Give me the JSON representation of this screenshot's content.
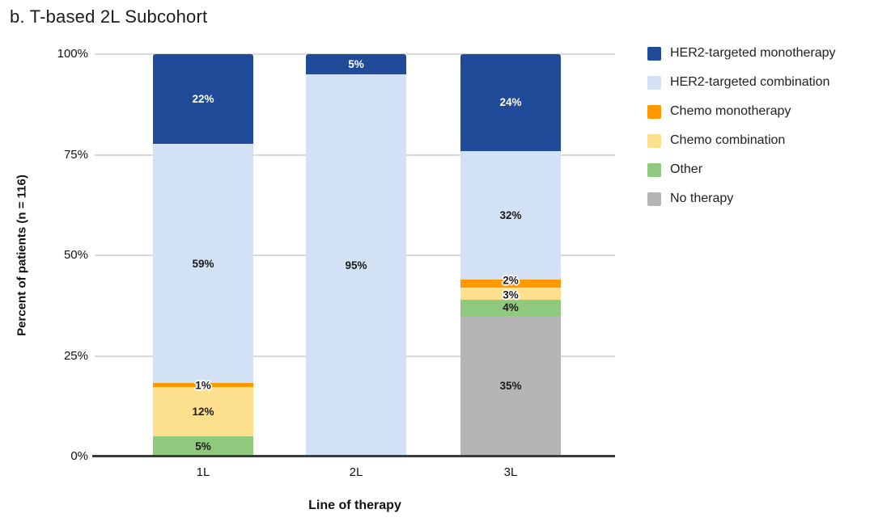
{
  "title": "b. T-based 2L Subcohort",
  "chart_data": {
    "type": "bar",
    "stacked": true,
    "title": "b. T-based 2L Subcohort",
    "xlabel": "Line of therapy",
    "ylabel": "Percent of patients (n = 116)",
    "categories": [
      "1L",
      "2L",
      "3L"
    ],
    "series": [
      {
        "name": "HER2-targeted monotherapy",
        "color": "#1f4b99",
        "label_color": "#ffffff",
        "values": [
          22,
          5,
          24
        ]
      },
      {
        "name": "HER2-targeted combination",
        "color": "#d2e2f4",
        "label_color": "#1a1a1a",
        "values": [
          59,
          95,
          32
        ]
      },
      {
        "name": "Chemo monotherapy",
        "color": "#ff9900",
        "label_color": "#1a1a1a",
        "values": [
          1,
          0,
          2
        ]
      },
      {
        "name": "Chemo combination",
        "color": "#fce08d",
        "label_color": "#1a1a1a",
        "values": [
          12,
          0,
          3
        ]
      },
      {
        "name": "Other",
        "color": "#8ec97d",
        "label_color": "#1a1a1a",
        "values": [
          5,
          0,
          4
        ]
      },
      {
        "name": "No therapy",
        "color": "#b5b5b5",
        "label_color": "#1a1a1a",
        "values": [
          0,
          0,
          35
        ]
      }
    ],
    "label_suffix": "%",
    "yticks": [
      100,
      75,
      50,
      25,
      0
    ],
    "ytick_suffix": "%",
    "ylim": [
      0,
      100
    ],
    "grid": true,
    "legend_position": "right"
  }
}
